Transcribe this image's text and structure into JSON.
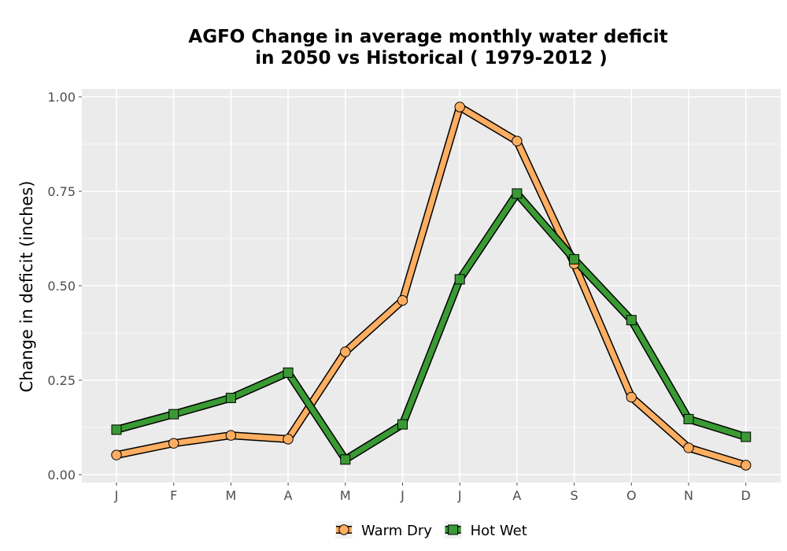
{
  "chart_data": {
    "type": "line",
    "title": [
      "AGFO  Change in average monthly water deficit",
      "in 2050 vs Historical ( 1979-2012 )"
    ],
    "xlabel": "",
    "ylabel": "Change in deficit (inches)",
    "categories": [
      "J",
      "F",
      "M",
      "A",
      "M",
      "J",
      "J",
      "A",
      "S",
      "O",
      "N",
      "D"
    ],
    "ylim": [
      0,
      1.0
    ],
    "yticks": [
      0.0,
      0.25,
      0.5,
      0.75,
      1.0
    ],
    "ytick_labels": [
      "0.00",
      "0.25",
      "0.50",
      "0.75",
      "1.00"
    ],
    "grid": true,
    "legend_position": "bottom",
    "series": [
      {
        "name": "Warm Dry",
        "marker": "circle",
        "color": "#FDAE61",
        "values": [
          0.052,
          0.083,
          0.104,
          0.094,
          0.325,
          0.461,
          0.973,
          0.883,
          0.558,
          0.205,
          0.071,
          0.025
        ]
      },
      {
        "name": "Hot Wet",
        "marker": "square",
        "color": "#3A9A34",
        "values": [
          0.119,
          0.16,
          0.203,
          0.27,
          0.04,
          0.133,
          0.517,
          0.744,
          0.57,
          0.409,
          0.147,
          0.1
        ]
      }
    ]
  },
  "colors": {
    "panel_background": "#EBEBEB",
    "grid": "#FFFFFF",
    "outline": "#000000"
  }
}
